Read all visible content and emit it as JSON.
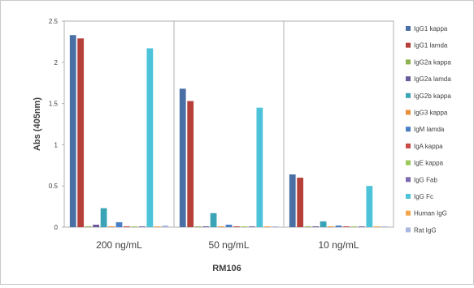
{
  "chart_data": {
    "type": "bar",
    "xlabel": "RM106",
    "ylabel": "Abs (405nm)",
    "ylim": [
      0,
      2.5
    ],
    "yticks": [
      "0",
      "0.5",
      "1",
      "1.5",
      "2",
      "2.5"
    ],
    "categories": [
      "200 ng/mL",
      "50 ng/mL",
      "10 ng/mL"
    ],
    "grid": false,
    "legend_position": "right",
    "series": [
      {
        "name": "IgG1 kappa",
        "color": "#4a6fa5",
        "values": [
          2.33,
          1.68,
          0.64
        ]
      },
      {
        "name": "IgG1 lamda",
        "color": "#b5403a",
        "values": [
          2.29,
          1.53,
          0.6
        ]
      },
      {
        "name": "IgG2a kappa",
        "color": "#8db350",
        "values": [
          0.01,
          0.01,
          0.01
        ]
      },
      {
        "name": "IgG2a lamda",
        "color": "#6a5a9a",
        "values": [
          0.03,
          0.01,
          0.01
        ]
      },
      {
        "name": "IgG2b kappa",
        "color": "#3aa3b5",
        "values": [
          0.23,
          0.17,
          0.07
        ]
      },
      {
        "name": "IgG3 kappa",
        "color": "#e8913a",
        "values": [
          0.01,
          0.01,
          0.01
        ]
      },
      {
        "name": "IgM lamda",
        "color": "#4a7fc4",
        "values": [
          0.06,
          0.03,
          0.02
        ]
      },
      {
        "name": "IgA kappa",
        "color": "#c84a44",
        "values": [
          0.01,
          0.01,
          0.01
        ]
      },
      {
        "name": "IgE kappa",
        "color": "#9cc85a",
        "values": [
          0.01,
          0.01,
          0.01
        ]
      },
      {
        "name": "IgG Fab",
        "color": "#7d69b0",
        "values": [
          0.01,
          0.01,
          0.01
        ]
      },
      {
        "name": "IgG Fc",
        "color": "#4cc3d9",
        "values": [
          2.17,
          1.45,
          0.5
        ]
      },
      {
        "name": "Human IgG",
        "color": "#f5a54a",
        "values": [
          0.01,
          0.01,
          0.01
        ]
      },
      {
        "name": "Rat IgG",
        "color": "#a9b8e0",
        "values": [
          0.02,
          0.01,
          0.01
        ]
      }
    ]
  }
}
